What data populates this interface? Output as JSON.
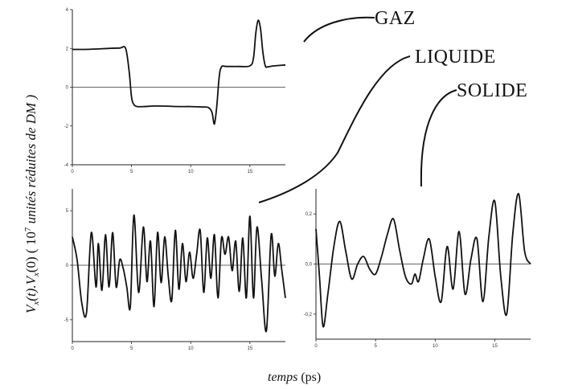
{
  "labels": {
    "xlabel_italic": "temps",
    "xlabel_unit": "(ps)",
    "ylabel_parts": [
      "V",
      "x",
      "(t).V",
      "x",
      "(0)  ( 10",
      "7",
      " unités réduites de DM )"
    ],
    "annotations": [
      "GAZ",
      "LIQUIDE",
      "SOLIDE"
    ]
  },
  "chart_data": [
    {
      "type": "line",
      "name": "GAZ",
      "xlim": [
        0,
        18
      ],
      "ylim": [
        -4,
        4
      ],
      "xticks": [
        "0",
        "5",
        "10",
        "15"
      ],
      "yticks": [
        "4",
        "2",
        "0",
        "-2",
        "-4"
      ],
      "series": [
        {
          "x": [
            0,
            1,
            2,
            3,
            4,
            4.5,
            4.8,
            5.0,
            5.2,
            5.5,
            6,
            7,
            8,
            9,
            10,
            11,
            11.5,
            11.8,
            12.0,
            12.2,
            12.4,
            12.6,
            13,
            14,
            15,
            15.3,
            15.5,
            15.7,
            15.9,
            16.1,
            16.3,
            16.5,
            17,
            18
          ],
          "y": [
            1.95,
            1.95,
            1.97,
            2.0,
            2.02,
            2.0,
            0.8,
            -0.5,
            -0.9,
            -1.0,
            -1.0,
            -0.97,
            -0.98,
            -1.0,
            -1.0,
            -1.02,
            -1.05,
            -1.3,
            -1.9,
            -1.0,
            0.5,
            1.05,
            1.07,
            1.07,
            1.1,
            1.5,
            2.8,
            3.45,
            3.0,
            1.8,
            1.1,
            1.05,
            1.1,
            1.15
          ]
        }
      ]
    },
    {
      "type": "line",
      "name": "LIQUIDE",
      "xlim": [
        0,
        18
      ],
      "ylim": [
        -7,
        7
      ],
      "xticks": [
        "0",
        "5",
        "10",
        "15"
      ],
      "yticks": [
        "5",
        "0",
        "-5"
      ],
      "series": [
        {
          "x": [
            0,
            0.4,
            0.8,
            1.2,
            1.6,
            2.0,
            2.2,
            2.5,
            2.8,
            3.1,
            3.4,
            3.7,
            4.0,
            4.3,
            4.6,
            4.9,
            5.2,
            5.6,
            6.0,
            6.3,
            6.6,
            6.9,
            7.2,
            7.5,
            7.8,
            8.1,
            8.4,
            8.7,
            9.0,
            9.3,
            9.6,
            9.9,
            10.2,
            10.5,
            10.8,
            11.1,
            11.4,
            11.7,
            12.0,
            12.3,
            12.6,
            12.9,
            13.2,
            13.5,
            13.8,
            14.1,
            14.4,
            14.7,
            15.0,
            15.3,
            15.6,
            16.0,
            16.4,
            16.8,
            17.1,
            17.4,
            17.7,
            18.0
          ],
          "y": [
            2.6,
            0.5,
            -3.5,
            -4.3,
            3.0,
            -2.0,
            2.0,
            -2.3,
            2.8,
            -2.0,
            3.0,
            -2.0,
            0.5,
            -0.3,
            -2.0,
            -3.8,
            4.6,
            -2.5,
            3.5,
            -1.5,
            2.2,
            -3.8,
            3.0,
            -1.6,
            2.6,
            -1.0,
            -3.2,
            3.2,
            -2.2,
            2.0,
            -1.5,
            1.2,
            -1.2,
            1.0,
            3.2,
            -2.5,
            2.5,
            -1.2,
            2.8,
            -3.0,
            2.5,
            1.0,
            2.6,
            -0.5,
            2.2,
            -2.4,
            2.5,
            -3.0,
            4.5,
            -3.0,
            3.5,
            -1.5,
            -6.0,
            2.8,
            -1.0,
            2.0,
            -0.5,
            -3.0
          ]
        }
      ]
    },
    {
      "type": "line",
      "name": "SOLIDE",
      "xlim": [
        0,
        18
      ],
      "ylim": [
        -0.3,
        0.3
      ],
      "xticks": [
        "0",
        "5",
        "10",
        "15"
      ],
      "yticks": [
        "0,2",
        "0,0",
        "-0,2"
      ],
      "series": [
        {
          "x": [
            0,
            0.3,
            0.6,
            1.0,
            1.5,
            2.0,
            2.5,
            3.0,
            3.5,
            4.0,
            4.5,
            5.0,
            5.5,
            6.0,
            6.5,
            7.0,
            7.5,
            8.0,
            8.3,
            8.6,
            9.0,
            9.5,
            10.0,
            10.5,
            11.0,
            11.5,
            12.0,
            12.5,
            13.0,
            13.5,
            14.0,
            14.5,
            15.0,
            15.5,
            16.0,
            16.5,
            17.0,
            17.5,
            18.0
          ],
          "y": [
            0.14,
            -0.05,
            -0.25,
            -0.12,
            0.07,
            0.17,
            0.05,
            -0.06,
            0.0,
            0.03,
            -0.02,
            -0.04,
            0.03,
            0.12,
            0.18,
            0.06,
            -0.05,
            -0.08,
            -0.04,
            -0.07,
            0.02,
            0.1,
            -0.05,
            -0.15,
            0.07,
            -0.1,
            0.13,
            -0.12,
            0.02,
            0.1,
            -0.15,
            0.11,
            0.25,
            -0.05,
            -0.2,
            0.12,
            0.28,
            0.05,
            0.0
          ]
        }
      ]
    }
  ]
}
